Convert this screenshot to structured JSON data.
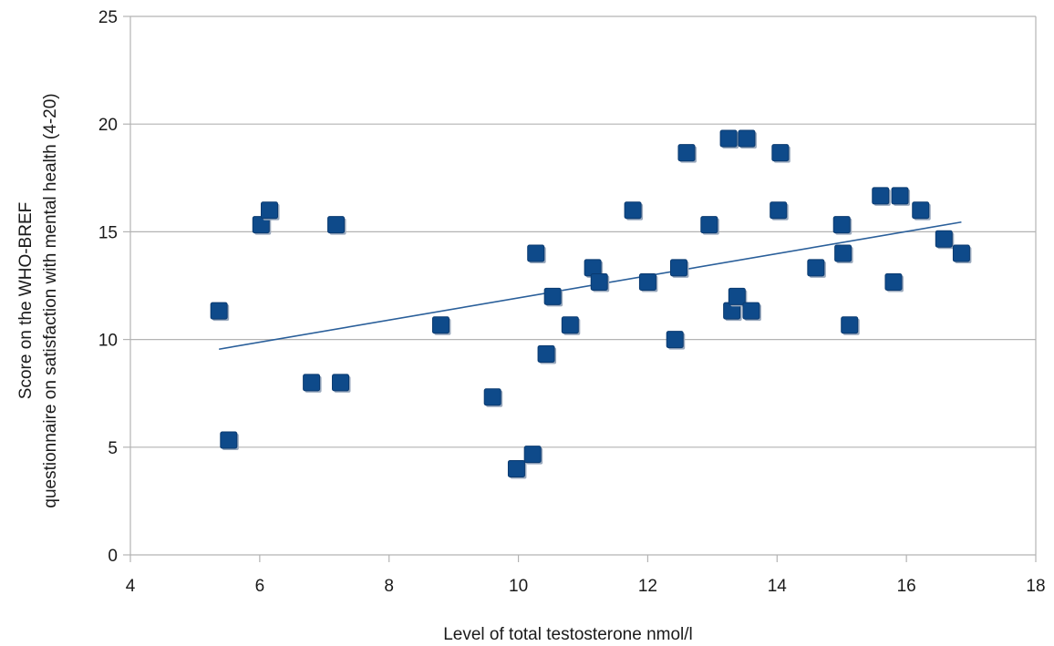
{
  "chart_data": {
    "type": "scatter",
    "xlabel": "Level of total testosterone nmol/l",
    "ylabel": [
      "Score on the WHO-BREF",
      "questionnaire on satisfaction with mental health (4-20)"
    ],
    "xlim": [
      4,
      18
    ],
    "ylim": [
      0,
      25
    ],
    "xticks": [
      4,
      6,
      8,
      10,
      12,
      14,
      16,
      18
    ],
    "yticks": [
      0,
      5,
      10,
      15,
      20,
      25
    ],
    "grid": "horizontal",
    "legend": "none",
    "marker": "square",
    "colors": {
      "marker": "#0e4a8a",
      "marker_shadow": "#9aa9bd",
      "trendline": "#2a5f9a",
      "grid": "#b3b3b3",
      "axis": "#b3b3b3"
    },
    "series": [
      {
        "points": [
          [
            5.37,
            11.33
          ],
          [
            5.52,
            5.33
          ],
          [
            6.02,
            15.33
          ],
          [
            6.15,
            16.0
          ],
          [
            6.8,
            8.0
          ],
          [
            7.18,
            15.33
          ],
          [
            7.25,
            8.0
          ],
          [
            8.8,
            10.67
          ],
          [
            9.6,
            7.33
          ],
          [
            9.97,
            4.0
          ],
          [
            10.22,
            4.67
          ],
          [
            10.27,
            14.0
          ],
          [
            10.43,
            9.33
          ],
          [
            10.53,
            12.0
          ],
          [
            10.8,
            10.67
          ],
          [
            11.15,
            13.33
          ],
          [
            11.25,
            12.67
          ],
          [
            11.77,
            16.0
          ],
          [
            12.0,
            12.67
          ],
          [
            12.42,
            10.0
          ],
          [
            12.48,
            13.33
          ],
          [
            12.6,
            18.67
          ],
          [
            12.95,
            15.33
          ],
          [
            13.25,
            19.33
          ],
          [
            13.3,
            11.33
          ],
          [
            13.38,
            12.0
          ],
          [
            13.53,
            19.33
          ],
          [
            13.6,
            11.33
          ],
          [
            14.02,
            16.0
          ],
          [
            14.05,
            18.67
          ],
          [
            14.6,
            13.33
          ],
          [
            15.0,
            15.33
          ],
          [
            15.02,
            14.0
          ],
          [
            15.12,
            10.67
          ],
          [
            15.6,
            16.67
          ],
          [
            15.8,
            12.67
          ],
          [
            15.9,
            16.67
          ],
          [
            16.22,
            16.0
          ],
          [
            16.58,
            14.67
          ],
          [
            16.85,
            14.0
          ]
        ]
      }
    ],
    "trendline": {
      "x": [
        5.37,
        16.85
      ],
      "y": [
        9.55,
        15.45
      ]
    }
  }
}
